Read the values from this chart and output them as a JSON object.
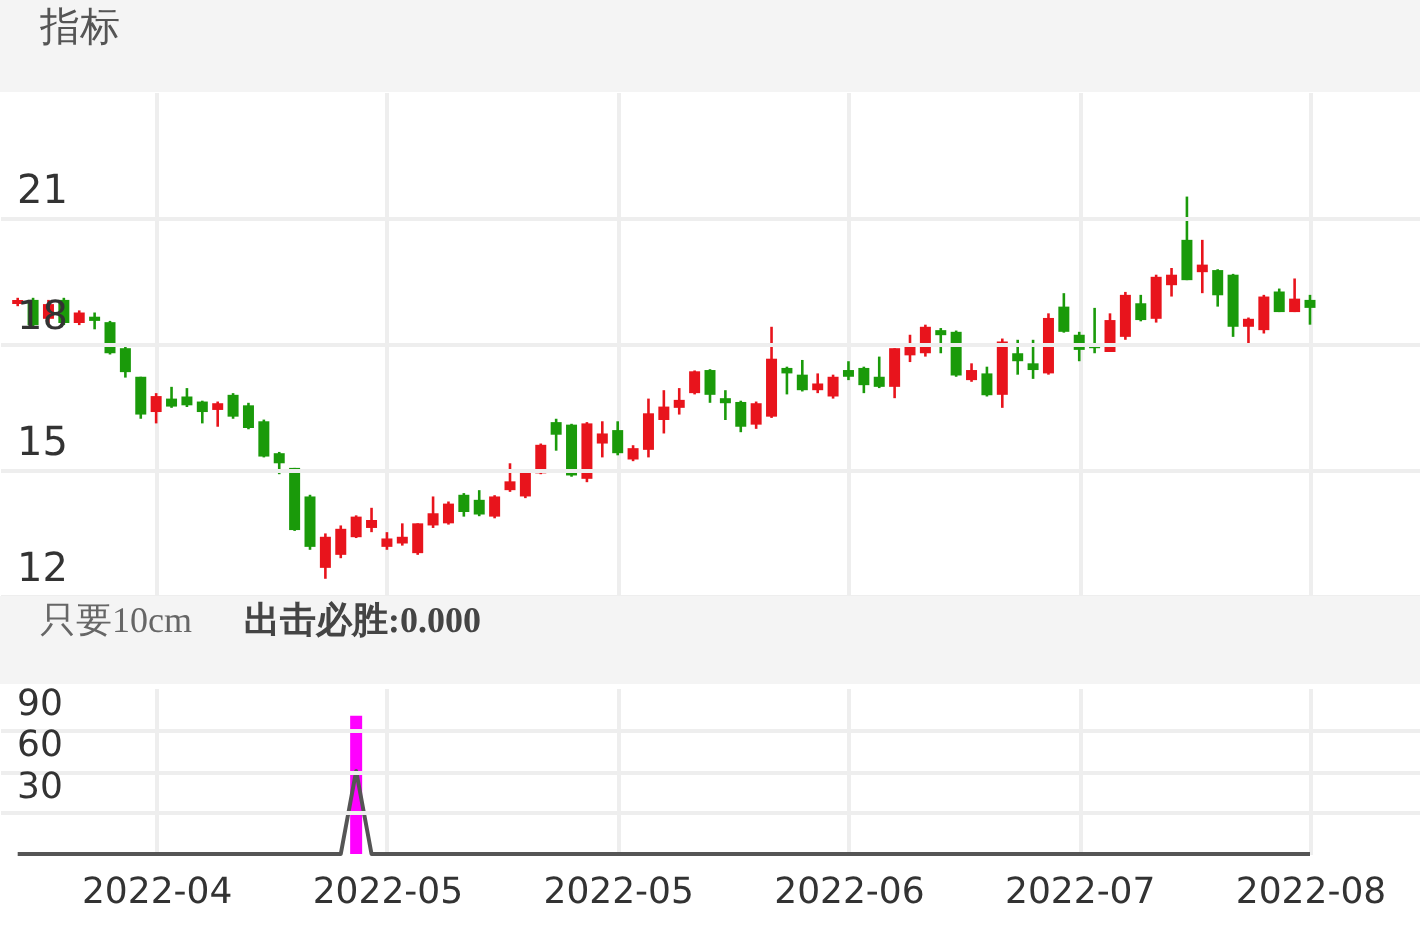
{
  "chart_data": [
    {
      "type": "candlestick",
      "title": "指标",
      "tick_labels": "y",
      "grid": true,
      "ylim": [
        12,
        24
      ],
      "yticks": [
        12,
        15,
        18,
        21
      ],
      "categories": [
        null,
        null,
        null,
        null,
        null,
        null,
        null,
        null,
        null,
        "2022-04",
        null,
        null,
        null,
        null,
        null,
        null,
        null,
        null,
        null,
        null,
        null,
        null,
        null,
        null,
        "2022-05",
        null,
        null,
        null,
        null,
        null,
        null,
        null,
        null,
        null,
        null,
        null,
        null,
        null,
        null,
        "2022-05",
        null,
        null,
        null,
        null,
        null,
        null,
        null,
        null,
        null,
        null,
        null,
        null,
        null,
        null,
        "2022-06",
        null,
        null,
        null,
        null,
        null,
        null,
        null,
        null,
        null,
        null,
        null,
        null,
        null,
        null,
        "2022-07",
        null,
        null,
        null,
        null,
        null,
        null,
        null,
        null,
        null,
        null,
        null,
        null,
        null,
        null,
        "2022-08"
      ],
      "ohlc": [
        [
          18.95,
          19.1,
          18.9,
          19.05
        ],
        [
          19.05,
          19.1,
          18.4,
          18.45
        ],
        [
          18.6,
          19.05,
          18.5,
          18.95
        ],
        [
          19.05,
          19.1,
          18.45,
          18.5
        ],
        [
          18.5,
          18.8,
          18.45,
          18.75
        ],
        [
          18.65,
          18.75,
          18.35,
          18.55
        ],
        [
          18.52,
          18.55,
          17.75,
          17.78
        ],
        [
          17.9,
          17.95,
          17.2,
          17.33
        ],
        [
          17.22,
          17.22,
          16.22,
          16.32
        ],
        [
          16.38,
          16.83,
          16.11,
          16.76
        ],
        [
          16.7,
          16.98,
          16.48,
          16.51
        ],
        [
          16.75,
          16.95,
          16.5,
          16.54
        ],
        [
          16.63,
          16.65,
          16.11,
          16.38
        ],
        [
          16.43,
          16.63,
          16.03,
          16.59
        ],
        [
          16.79,
          16.83,
          16.22,
          16.27
        ],
        [
          16.54,
          16.6,
          15.97,
          16.0
        ],
        [
          16.16,
          16.2,
          15.3,
          15.32
        ],
        [
          15.4,
          15.43,
          14.9,
          15.16
        ],
        [
          15.05,
          15.05,
          13.55,
          13.57
        ],
        [
          14.37,
          14.41,
          13.1,
          13.17
        ],
        [
          12.67,
          13.49,
          12.41,
          13.41
        ],
        [
          12.98,
          13.68,
          12.9,
          13.6
        ],
        [
          13.4,
          13.92,
          13.38,
          13.89
        ],
        [
          13.62,
          14.1,
          13.52,
          13.81
        ],
        [
          13.17,
          13.52,
          13.1,
          13.37
        ],
        [
          13.25,
          13.73,
          13.2,
          13.41
        ],
        [
          13.02,
          13.73,
          12.98,
          13.73
        ],
        [
          13.68,
          14.37,
          13.62,
          13.97
        ],
        [
          13.73,
          14.25,
          13.7,
          14.2
        ],
        [
          14.41,
          14.45,
          13.89,
          14.0
        ],
        [
          14.29,
          14.52,
          13.9,
          13.94
        ],
        [
          13.89,
          14.4,
          13.85,
          14.37
        ],
        [
          14.52,
          15.16,
          14.48,
          14.73
        ],
        [
          14.37,
          15.0,
          14.33,
          14.97
        ],
        [
          14.92,
          15.63,
          14.9,
          15.6
        ],
        [
          16.14,
          16.22,
          15.46,
          15.84
        ],
        [
          16.08,
          16.1,
          14.84,
          14.87
        ],
        [
          14.79,
          16.14,
          14.71,
          16.11
        ],
        [
          15.63,
          16.16,
          15.3,
          15.87
        ],
        [
          15.95,
          16.16,
          15.35,
          15.4
        ],
        [
          15.25,
          15.59,
          15.21,
          15.52
        ],
        [
          15.48,
          16.7,
          15.3,
          16.35
        ],
        [
          16.19,
          16.9,
          15.87,
          16.51
        ],
        [
          16.48,
          16.95,
          16.32,
          16.67
        ],
        [
          16.83,
          17.37,
          16.8,
          17.35
        ],
        [
          17.38,
          17.4,
          16.6,
          16.79
        ],
        [
          16.71,
          16.9,
          16.19,
          16.59
        ],
        [
          16.62,
          16.65,
          15.9,
          16.03
        ],
        [
          16.08,
          16.63,
          15.98,
          16.59
        ],
        [
          16.27,
          18.41,
          16.24,
          17.65
        ],
        [
          17.43,
          17.46,
          16.8,
          17.3
        ],
        [
          17.27,
          17.62,
          16.87,
          16.9
        ],
        [
          16.9,
          17.3,
          16.83,
          17.06
        ],
        [
          16.75,
          17.27,
          16.7,
          17.22
        ],
        [
          17.38,
          17.59,
          17.14,
          17.22
        ],
        [
          17.43,
          17.46,
          16.83,
          17.02
        ],
        [
          17.22,
          17.7,
          16.95,
          16.98
        ],
        [
          16.98,
          17.9,
          16.71,
          17.9
        ],
        [
          17.73,
          18.22,
          17.57,
          17.97
        ],
        [
          17.78,
          18.46,
          17.7,
          18.41
        ],
        [
          18.33,
          18.38,
          17.78,
          18.21
        ],
        [
          18.29,
          18.32,
          17.22,
          17.25
        ],
        [
          17.14,
          17.54,
          17.1,
          17.38
        ],
        [
          17.3,
          17.46,
          16.75,
          16.78
        ],
        [
          16.79,
          18.13,
          16.48,
          18.06
        ],
        [
          17.78,
          18.1,
          17.27,
          17.59
        ],
        [
          17.54,
          18.1,
          17.17,
          17.38
        ],
        [
          17.3,
          18.73,
          17.27,
          18.62
        ],
        [
          18.89,
          19.21,
          18.27,
          18.29
        ],
        [
          18.22,
          18.29,
          17.59,
          17.86
        ],
        [
          17.97,
          18.86,
          17.78,
          17.9
        ],
        [
          17.81,
          18.73,
          17.81,
          18.57
        ],
        [
          18.17,
          19.24,
          18.1,
          19.17
        ],
        [
          18.97,
          19.17,
          18.54,
          18.57
        ],
        [
          18.6,
          19.65,
          18.51,
          19.6
        ],
        [
          19.4,
          19.81,
          19.13,
          19.65
        ],
        [
          20.48,
          21.51,
          19.52,
          19.52
        ],
        [
          19.71,
          20.48,
          19.21,
          19.89
        ],
        [
          19.76,
          19.78,
          18.89,
          19.16
        ],
        [
          19.65,
          19.67,
          18.17,
          18.41
        ],
        [
          18.41,
          18.63,
          17.97,
          18.6
        ],
        [
          18.33,
          19.17,
          18.25,
          19.13
        ],
        [
          19.25,
          19.32,
          18.76,
          18.76
        ],
        [
          18.76,
          19.56,
          18.76,
          19.08
        ],
        [
          19.05,
          19.17,
          18.46,
          18.86
        ]
      ],
      "colors": [
        "#e8141c",
        "#1a9a0a",
        "#e8141c",
        "#1a9a0a",
        "#e8141c",
        "#1a9a0a",
        "#1a9a0a",
        "#1a9a0a",
        "#1a9a0a",
        "#e8141c",
        "#1a9a0a",
        "#1a9a0a",
        "#1a9a0a",
        "#e8141c",
        "#1a9a0a",
        "#1a9a0a",
        "#1a9a0a",
        "#1a9a0a",
        "#1a9a0a",
        "#1a9a0a",
        "#e8141c",
        "#e8141c",
        "#e8141c",
        "#e8141c",
        "#e8141c",
        "#e8141c",
        "#e8141c",
        "#e8141c",
        "#e8141c",
        "#1a9a0a",
        "#1a9a0a",
        "#e8141c",
        "#e8141c",
        "#e8141c",
        "#e8141c",
        "#1a9a0a",
        "#1a9a0a",
        "#e8141c",
        "#e8141c",
        "#1a9a0a",
        "#e8141c",
        "#e8141c",
        "#e8141c",
        "#e8141c",
        "#e8141c",
        "#1a9a0a",
        "#1a9a0a",
        "#1a9a0a",
        "#e8141c",
        "#e8141c",
        "#1a9a0a",
        "#1a9a0a",
        "#e8141c",
        "#e8141c",
        "#1a9a0a",
        "#1a9a0a",
        "#1a9a0a",
        "#e8141c",
        "#e8141c",
        "#e8141c",
        "#1a9a0a",
        "#1a9a0a",
        "#e8141c",
        "#1a9a0a",
        "#e8141c",
        "#1a9a0a",
        "#1a9a0a",
        "#e8141c",
        "#1a9a0a",
        "#1a9a0a",
        "#1a9a0a",
        "#e8141c",
        "#e8141c",
        "#1a9a0a",
        "#e8141c",
        "#e8141c",
        "#1a9a0a",
        "#e8141c",
        "#1a9a0a",
        "#1a9a0a",
        "#e8141c",
        "#e8141c",
        "#1a9a0a",
        "#e8141c",
        "#1a9a0a"
      ]
    },
    {
      "type": "line",
      "title": "只要10cm",
      "subtitle": "出击必胜:0.000",
      "grid": true,
      "ylim": [
        0,
        120
      ],
      "yticks": [
        30,
        60,
        90
      ],
      "categories": [
        null,
        null,
        null,
        null,
        null,
        null,
        null,
        null,
        null,
        "2022-04",
        null,
        null,
        null,
        null,
        null,
        null,
        null,
        null,
        null,
        null,
        null,
        null,
        null,
        null,
        "2022-05",
        null,
        null,
        null,
        null,
        null,
        null,
        null,
        null,
        null,
        null,
        null,
        null,
        null,
        null,
        "2022-05",
        null,
        null,
        null,
        null,
        null,
        null,
        null,
        null,
        null,
        null,
        null,
        null,
        null,
        null,
        "2022-06",
        null,
        null,
        null,
        null,
        null,
        null,
        null,
        null,
        null,
        null,
        null,
        null,
        null,
        null,
        "2022-07",
        null,
        null,
        null,
        null,
        null,
        null,
        null,
        null,
        null,
        null,
        null,
        null,
        null,
        null,
        "2022-08"
      ],
      "series": [
        {
          "type": "bar",
          "color": "#ff00ff",
          "values": [
            null,
            null,
            null,
            null,
            null,
            null,
            null,
            null,
            null,
            null,
            null,
            null,
            null,
            null,
            null,
            null,
            null,
            null,
            null,
            null,
            null,
            null,
            100,
            null,
            null,
            null,
            null,
            null,
            null,
            null,
            null,
            null,
            null,
            null,
            null,
            null,
            null,
            null,
            null,
            null,
            null,
            null,
            null,
            null,
            null,
            null,
            null,
            null,
            null,
            null,
            null,
            null,
            null,
            null,
            null,
            null,
            null,
            null,
            null,
            null,
            null,
            null,
            null,
            null,
            null,
            null,
            null,
            null,
            null,
            null,
            null,
            null,
            null,
            null,
            null,
            null,
            null,
            null,
            null,
            null,
            null,
            null,
            null,
            null,
            null
          ]
        },
        {
          "type": "line",
          "color": "#555555",
          "values": [
            0,
            0,
            0,
            0,
            0,
            0,
            0,
            0,
            0,
            0,
            0,
            0,
            0,
            0,
            0,
            0,
            0,
            0,
            0,
            0,
            0,
            0,
            60,
            0,
            0,
            0,
            0,
            0,
            0,
            0,
            0,
            0,
            0,
            0,
            0,
            0,
            0,
            0,
            0,
            0,
            0,
            0,
            0,
            0,
            0,
            0,
            0,
            0,
            0,
            0,
            0,
            0,
            0,
            0,
            0,
            0,
            0,
            0,
            0,
            0,
            0,
            0,
            0,
            0,
            0,
            0,
            0,
            0,
            0,
            0,
            0,
            0,
            0,
            0,
            0,
            0,
            0,
            0,
            0,
            0,
            0,
            0,
            0,
            0,
            0
          ]
        }
      ]
    }
  ]
}
